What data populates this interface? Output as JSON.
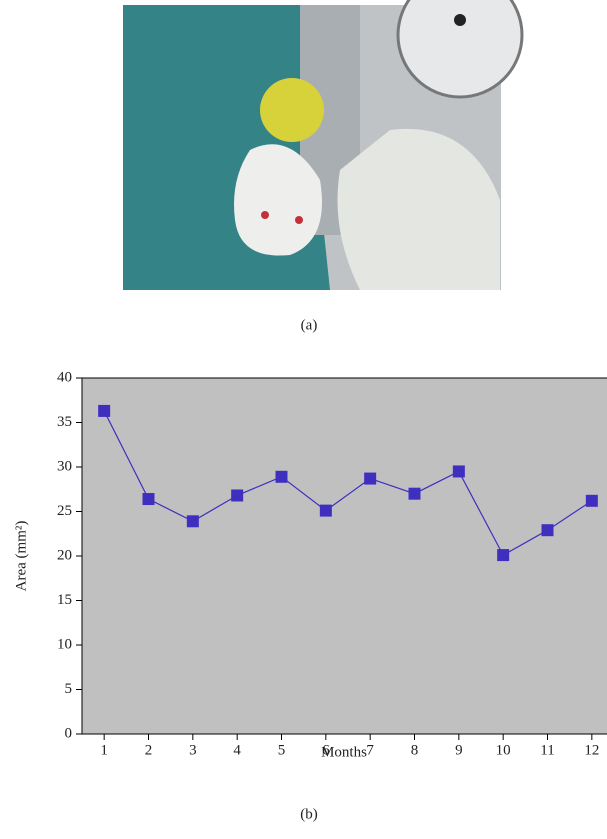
{
  "figure": {
    "panel_a_label": "(a)",
    "panel_b_label": "(b)"
  },
  "chart_data": {
    "type": "line",
    "x_label": "Months",
    "y_label": "Area (mm²)",
    "x": [
      1,
      2,
      3,
      4,
      5,
      6,
      7,
      8,
      9,
      10,
      11,
      12
    ],
    "series": [
      {
        "color": "#3f2fbf",
        "values": [
          36.3,
          26.4,
          23.9,
          26.8,
          28.9,
          25.1,
          28.7,
          27.0,
          29.5,
          20.1,
          22.9,
          26.2
        ]
      }
    ],
    "xlim": [
      0.5,
      12.5
    ],
    "xticks": [
      1,
      2,
      3,
      4,
      5,
      6,
      7,
      8,
      9,
      10,
      11,
      12
    ],
    "ylim": [
      0,
      40
    ],
    "yticks": [
      0,
      5,
      10,
      15,
      20,
      25,
      30,
      35,
      40
    ],
    "plot_background": "#c0c0c0",
    "marker": "square"
  }
}
